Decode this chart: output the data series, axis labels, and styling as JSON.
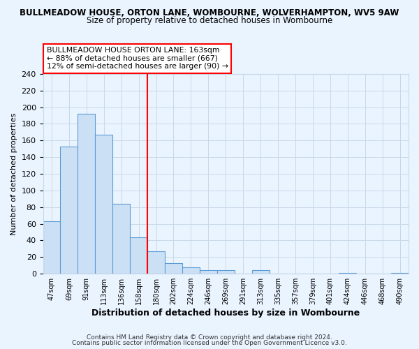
{
  "title_main": "BULLMEADOW HOUSE, ORTON LANE, WOMBOURNE, WOLVERHAMPTON, WV5 9AW",
  "title_sub": "Size of property relative to detached houses in Wombourne",
  "xlabel": "Distribution of detached houses by size in Wombourne",
  "ylabel": "Number of detached properties",
  "bin_labels": [
    "47sqm",
    "69sqm",
    "91sqm",
    "113sqm",
    "136sqm",
    "158sqm",
    "180sqm",
    "202sqm",
    "224sqm",
    "246sqm",
    "269sqm",
    "291sqm",
    "313sqm",
    "335sqm",
    "357sqm",
    "379sqm",
    "401sqm",
    "424sqm",
    "446sqm",
    "468sqm",
    "490sqm"
  ],
  "bar_values": [
    63,
    153,
    192,
    167,
    84,
    44,
    27,
    13,
    8,
    4,
    4,
    0,
    4,
    0,
    0,
    0,
    0,
    1,
    0,
    0,
    1
  ],
  "bar_color": "#cce0f5",
  "bar_edge_color": "#5b9bd5",
  "vline_x": 6.0,
  "vline_color": "red",
  "ylim": [
    0,
    240
  ],
  "yticks": [
    0,
    20,
    40,
    60,
    80,
    100,
    120,
    140,
    160,
    180,
    200,
    220,
    240
  ],
  "annotation_line1": "BULLMEADOW HOUSE ORTON LANE: 163sqm",
  "annotation_line2": "← 88% of detached houses are smaller (667)",
  "annotation_line3": "12% of semi-detached houses are larger (90) →",
  "footer1": "Contains HM Land Registry data © Crown copyright and database right 2024.",
  "footer2": "Contains public sector information licensed under the Open Government Licence v3.0.",
  "bg_color": "#eaf4ff",
  "plot_bg_color": "#eaf4ff",
  "grid_color": "#c8d8e8"
}
